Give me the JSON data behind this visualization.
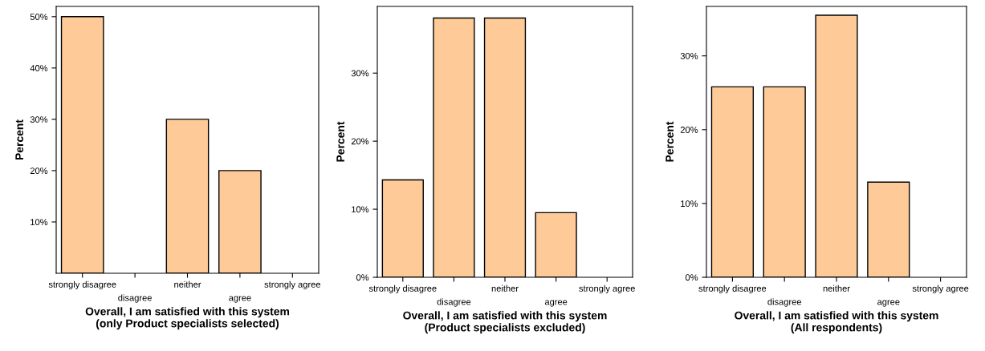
{
  "chart_data": [
    {
      "type": "bar",
      "categories": [
        "strongly disagree",
        "disagree",
        "neither",
        "agree",
        "strongly agree"
      ],
      "values": [
        50,
        0,
        30,
        20,
        0
      ],
      "color": "#fecb98",
      "ylabel": "Percent",
      "xlabel": "Overall, I am satisfied with this system\n(only Product specialists selected)",
      "ylim": [
        0,
        52
      ],
      "yticks": [
        {
          "value": 10,
          "label": "10%"
        },
        {
          "value": 20,
          "label": "20%"
        },
        {
          "value": 30,
          "label": "30%"
        },
        {
          "value": 40,
          "label": "40%"
        },
        {
          "value": 50,
          "label": "50%"
        }
      ],
      "grid": false,
      "legend": false
    },
    {
      "type": "bar",
      "categories": [
        "strongly disagree",
        "disagree",
        "neither",
        "agree",
        "strongly agree"
      ],
      "values": [
        14.3,
        38.1,
        38.1,
        9.5,
        0
      ],
      "color": "#fecb98",
      "ylabel": "Percent",
      "xlabel": "Overall, I am satisfied with this system\n(Product specialists excluded)",
      "ylim": [
        0,
        39.8
      ],
      "yticks": [
        {
          "value": 0,
          "label": "0%"
        },
        {
          "value": 10,
          "label": "10%"
        },
        {
          "value": 20,
          "label": "20%"
        },
        {
          "value": 30,
          "label": "30%"
        }
      ],
      "grid": false,
      "legend": false
    },
    {
      "type": "bar",
      "categories": [
        "strongly disagree",
        "disagree",
        "neither",
        "agree",
        "strongly agree"
      ],
      "values": [
        25.8,
        25.8,
        35.5,
        12.9,
        0
      ],
      "color": "#fecb98",
      "ylabel": "Percent",
      "xlabel": "Overall, I am satisfied with this system\n(All respondents)",
      "ylim": [
        0,
        36.7
      ],
      "yticks": [
        {
          "value": 0,
          "label": "0%"
        },
        {
          "value": 10,
          "label": "10%"
        },
        {
          "value": 20,
          "label": "20%"
        },
        {
          "value": 30,
          "label": "30%"
        }
      ],
      "grid": false,
      "legend": false
    }
  ]
}
